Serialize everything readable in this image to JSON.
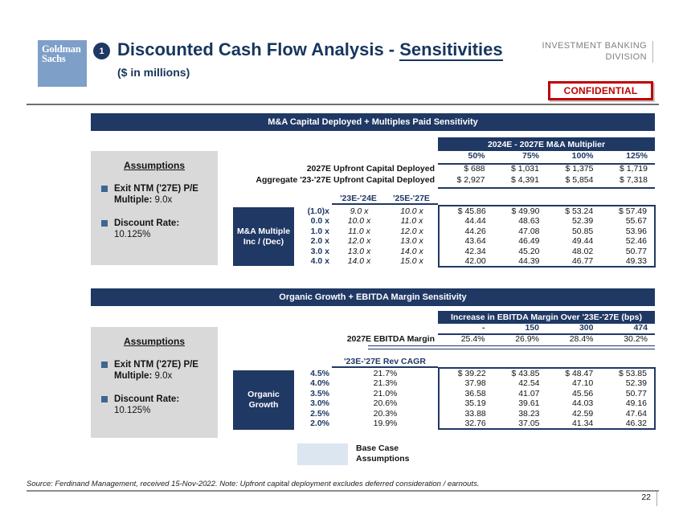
{
  "colors": {
    "navy": "#1F3864",
    "title_navy": "#17365D",
    "red": "#C00000",
    "gray_box": "#D9D9D9",
    "light_blue": "#DCE6F1",
    "logo_blue": "#7E9FC8",
    "bullet_blue": "#3F6593"
  },
  "header": {
    "logo_line1": "Goldman",
    "logo_line2": "Sachs",
    "slide_number_badge": "1",
    "title_plain": "Discounted Cash Flow Analysis - ",
    "title_underlined": "Sensitivities",
    "subtitle": "($ in millions)",
    "division_line1": "INVESTMENT BANKING",
    "division_line2": "DIVISION",
    "confidential": "CONFIDENTIAL"
  },
  "section1": {
    "banner": "M&A Capital Deployed + Multiples Paid Sensitivity",
    "multiplier_header": "2024E - 2027E M&A Multiplier",
    "col_headers": [
      "50%",
      "75%",
      "100%",
      "125%"
    ],
    "capital_rows": [
      {
        "label": "2027E Upfront Capital Deployed",
        "values": [
          "$ 688",
          "$ 1,031",
          "$ 1,375",
          "$ 1,719"
        ]
      },
      {
        "label": "Aggregate '23-'27E Upfront Capital Deployed",
        "values": [
          "$ 2,927",
          "$ 4,391",
          "$ 5,854",
          "$ 7,318"
        ]
      }
    ],
    "assumptions": {
      "title": "Assumptions",
      "items": [
        {
          "bold": "Exit NTM ('27E) P/E Multiple:",
          "rest": "9.0x"
        },
        {
          "bold": "Discount Rate:",
          "rest": "10.125%"
        }
      ]
    },
    "matrix": {
      "row_box_line1": "M&A Multiple",
      "row_box_line2": "Inc / (Dec)",
      "col1_header": "'23E-'24E",
      "col2_header": "'25E-'27E",
      "rows": [
        {
          "label": "(1.0)x",
          "m1": "9.0 x",
          "m2": "10.0 x",
          "values": [
            "$ 45.86",
            "$ 49.90",
            "$ 53.24",
            "$ 57.49"
          ]
        },
        {
          "label": "0.0 x",
          "m1": "10.0 x",
          "m2": "11.0 x",
          "values": [
            "44.44",
            "48.63",
            "52.39",
            "55.67"
          ]
        },
        {
          "label": "1.0 x",
          "m1": "11.0 x",
          "m2": "12.0 x",
          "values": [
            "44.26",
            "47.08",
            "50.85",
            "53.96"
          ]
        },
        {
          "label": "2.0 x",
          "m1": "12.0 x",
          "m2": "13.0 x",
          "values": [
            "43.64",
            "46.49",
            "49.44",
            "52.46"
          ]
        },
        {
          "label": "3.0 x",
          "m1": "13.0 x",
          "m2": "14.0 x",
          "values": [
            "42.34",
            "45.20",
            "48.02",
            "50.77"
          ]
        },
        {
          "label": "4.0 x",
          "m1": "14.0 x",
          "m2": "15.0 x",
          "values": [
            "42.00",
            "44.39",
            "46.77",
            "49.33"
          ]
        }
      ]
    }
  },
  "section2": {
    "banner": "Organic Growth + EBITDA Margin Sensitivity",
    "ebitda_header": "Increase in EBITDA Margin Over '23E-'27E (bps)",
    "col_headers": [
      "-",
      "150",
      "300",
      "474"
    ],
    "margin_row": {
      "label": "2027E EBITDA Margin",
      "values": [
        "25.4%",
        "26.9%",
        "28.4%",
        "30.2%"
      ]
    },
    "assumptions": {
      "title": "Assumptions",
      "items": [
        {
          "bold": "Exit NTM ('27E) P/E Multiple:",
          "rest": "9.0x"
        },
        {
          "bold": "Discount Rate:",
          "rest": "10.125%"
        }
      ]
    },
    "matrix": {
      "row_box_line1": "Organic",
      "row_box_line2": "Growth",
      "col_header": "'23E-'27E Rev CAGR",
      "rows": [
        {
          "label": "4.5%",
          "cagr": "21.7%",
          "values": [
            "$ 39.22",
            "$ 43.85",
            "$ 48.47",
            "$ 53.85"
          ]
        },
        {
          "label": "4.0%",
          "cagr": "21.3%",
          "values": [
            "37.98",
            "42.54",
            "47.10",
            "52.39"
          ]
        },
        {
          "label": "3.5%",
          "cagr": "21.0%",
          "values": [
            "36.58",
            "41.07",
            "45.56",
            "50.77"
          ]
        },
        {
          "label": "3.0%",
          "cagr": "20.6%",
          "values": [
            "35.19",
            "39.61",
            "44.03",
            "49.16"
          ]
        },
        {
          "label": "2.5%",
          "cagr": "20.3%",
          "values": [
            "33.88",
            "38.23",
            "42.59",
            "47.64"
          ]
        },
        {
          "label": "2.0%",
          "cagr": "19.9%",
          "values": [
            "32.76",
            "37.05",
            "41.34",
            "46.32"
          ]
        }
      ]
    }
  },
  "legend": {
    "line1": "Base Case",
    "line2": "Assumptions"
  },
  "footer": {
    "source": "Source: Ferdinand Management, received 15-Nov-2022. Note: Upfront capital deployment excludes deferred consideration / earnouts.",
    "page_number": "22"
  }
}
